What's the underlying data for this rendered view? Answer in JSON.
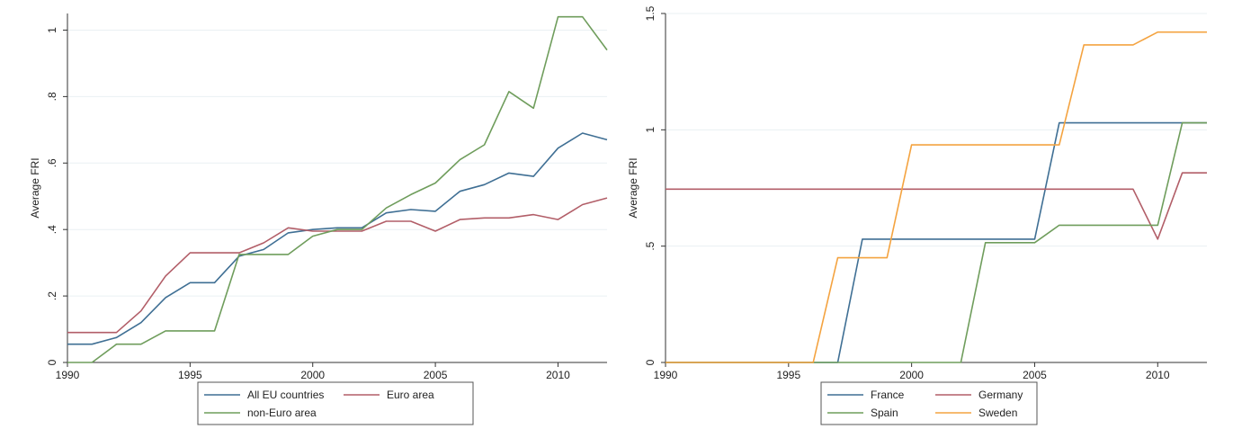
{
  "chart_data": [
    {
      "type": "line",
      "ylabel": "Average FRI",
      "xlim": [
        1990,
        2012
      ],
      "ylim": [
        0,
        1.05
      ],
      "xticks": [
        1990,
        1995,
        2000,
        2005,
        2010
      ],
      "xtick_labels": [
        "1990",
        "1995",
        "2000",
        "2005",
        "2010"
      ],
      "yticks": [
        0,
        0.2,
        0.4,
        0.6,
        0.8,
        1
      ],
      "ytick_labels": [
        "0",
        ".2",
        ".4",
        ".6",
        ".8",
        "1"
      ],
      "grid": "horizontal",
      "legend_position": "bottom",
      "x": [
        1990,
        1991,
        1992,
        1993,
        1994,
        1995,
        1996,
        1997,
        1998,
        1999,
        2000,
        2001,
        2002,
        2003,
        2004,
        2005,
        2006,
        2007,
        2008,
        2009,
        2010,
        2011,
        2012
      ],
      "series": [
        {
          "name": "All EU countries",
          "color": "#3f6f94",
          "values": [
            0.055,
            0.055,
            0.075,
            0.12,
            0.195,
            0.24,
            0.24,
            0.32,
            0.34,
            0.39,
            0.4,
            0.405,
            0.405,
            0.45,
            0.46,
            0.455,
            0.515,
            0.535,
            0.57,
            0.56,
            0.645,
            0.69,
            0.67
          ]
        },
        {
          "name": "Euro area",
          "color": "#b25e68",
          "values": [
            0.09,
            0.09,
            0.09,
            0.155,
            0.26,
            0.33,
            0.33,
            0.33,
            0.36,
            0.405,
            0.395,
            0.395,
            0.395,
            0.425,
            0.425,
            0.395,
            0.43,
            0.435,
            0.435,
            0.445,
            0.43,
            0.475,
            0.495
          ]
        },
        {
          "name": "non-Euro area",
          "color": "#6f9d5c",
          "values": [
            0,
            0,
            0.055,
            0.055,
            0.095,
            0.095,
            0.095,
            0.325,
            0.325,
            0.325,
            0.38,
            0.4,
            0.4,
            0.465,
            0.505,
            0.54,
            0.61,
            0.655,
            0.815,
            0.765,
            1.04,
            1.04,
            0.94
          ]
        }
      ]
    },
    {
      "type": "line",
      "ylabel": "Average FRI",
      "xlim": [
        1990,
        2012
      ],
      "ylim": [
        0,
        1.5
      ],
      "xticks": [
        1990,
        1995,
        2000,
        2005,
        2010
      ],
      "xtick_labels": [
        "1990",
        "1995",
        "2000",
        "2005",
        "2010"
      ],
      "yticks": [
        0,
        0.5,
        1,
        1.5
      ],
      "ytick_labels": [
        "0",
        ".5",
        "1",
        "1.5"
      ],
      "grid": "horizontal",
      "legend_position": "bottom",
      "x": [
        1990,
        1991,
        1992,
        1993,
        1994,
        1995,
        1996,
        1997,
        1998,
        1999,
        2000,
        2001,
        2002,
        2003,
        2004,
        2005,
        2006,
        2007,
        2008,
        2009,
        2010,
        2011,
        2012
      ],
      "series": [
        {
          "name": "France",
          "color": "#3f6f94",
          "values": [
            0,
            0,
            0,
            0,
            0,
            0,
            0,
            0,
            0.53,
            0.53,
            0.53,
            0.53,
            0.53,
            0.53,
            0.53,
            0.53,
            1.03,
            1.03,
            1.03,
            1.03,
            1.03,
            1.03,
            1.03
          ]
        },
        {
          "name": "Germany",
          "color": "#b25e68",
          "values": [
            0.745,
            0.745,
            0.745,
            0.745,
            0.745,
            0.745,
            0.745,
            0.745,
            0.745,
            0.745,
            0.745,
            0.745,
            0.745,
            0.745,
            0.745,
            0.745,
            0.745,
            0.745,
            0.745,
            0.745,
            0.53,
            0.815,
            0.815
          ]
        },
        {
          "name": "Spain",
          "color": "#6f9d5c",
          "values": [
            0,
            0,
            0,
            0,
            0,
            0,
            0,
            0,
            0,
            0,
            0,
            0,
            0,
            0.515,
            0.515,
            0.515,
            0.59,
            0.59,
            0.59,
            0.59,
            0.59,
            1.03,
            1.03
          ]
        },
        {
          "name": "Sweden",
          "color": "#f4a340",
          "values": [
            0,
            0,
            0,
            0,
            0,
            0,
            0,
            0.45,
            0.45,
            0.45,
            0.935,
            0.935,
            0.935,
            0.935,
            0.935,
            0.935,
            0.935,
            1.365,
            1.365,
            1.365,
            1.42,
            1.42,
            1.42
          ]
        }
      ]
    }
  ]
}
